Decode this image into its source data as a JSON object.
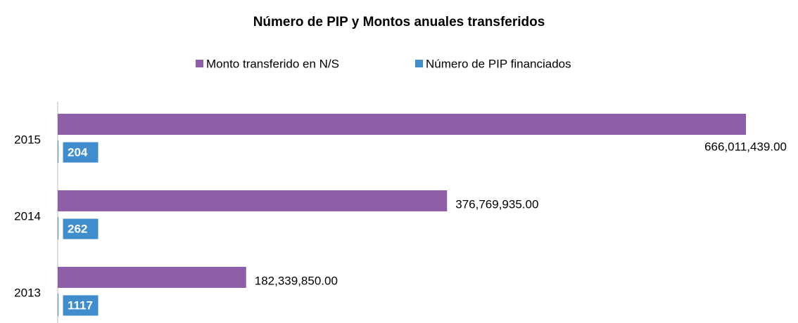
{
  "chart_data": {
    "type": "hbar",
    "title": "Número de PIP y Montos anuales transferidos",
    "categories": [
      "2015",
      "2014",
      "2013"
    ],
    "series": [
      {
        "name": "Monto transferido en N/S",
        "color": "#8e5fa8",
        "values": [
          666011439,
          376769935,
          182339850
        ],
        "value_labels": [
          "666,011,439.00",
          "376,769,935.00",
          "182,339,850.00"
        ]
      },
      {
        "name": "Número de PIP financiados",
        "color": "#3f8dcc",
        "values": [
          204,
          262,
          1117
        ]
      }
    ],
    "legend": "top"
  }
}
